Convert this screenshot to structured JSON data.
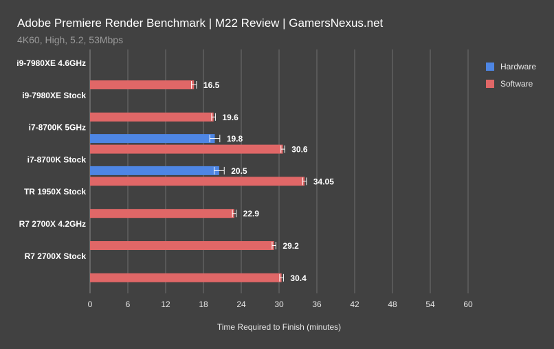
{
  "chart_data": {
    "type": "bar",
    "orientation": "horizontal",
    "title": "Adobe Premiere Render Benchmark | M22 Review | GamersNexus.net",
    "subtitle": "4K60, High, 5.2, 53Mbps",
    "xlabel": "Time Required to Finish (minutes)",
    "ylabel": "",
    "xlim": [
      0,
      60
    ],
    "xticks": [
      "0",
      "6",
      "12",
      "18",
      "24",
      "30",
      "36",
      "42",
      "48",
      "54",
      "60"
    ],
    "grid": true,
    "legend_position": "top-right",
    "categories": [
      "i9-7980XE 4.6GHz",
      "i9-7980XE Stock",
      "i7-8700K 5GHz",
      "i7-8700K Stock",
      "TR 1950X Stock",
      "R7 2700X 4.2GHz",
      "R7 2700X Stock"
    ],
    "series": [
      {
        "name": "Hardware",
        "color": "#4e86e4",
        "values": [
          null,
          null,
          19.8,
          20.5,
          null,
          null,
          null
        ],
        "labels": [
          null,
          null,
          "19.8",
          "20.5",
          null,
          null,
          null
        ],
        "errors": [
          null,
          null,
          0.8,
          0.8,
          null,
          null,
          null
        ]
      },
      {
        "name": "Software",
        "color": "#e06767",
        "values": [
          16.5,
          19.6,
          30.6,
          34.05,
          22.9,
          29.2,
          30.4
        ],
        "labels": [
          "16.5",
          "19.6",
          "30.6",
          "34.05",
          "22.9",
          "29.2",
          "30.4"
        ],
        "errors": [
          0.4,
          0.3,
          0.3,
          0.3,
          0.3,
          0.3,
          0.3
        ]
      }
    ]
  }
}
